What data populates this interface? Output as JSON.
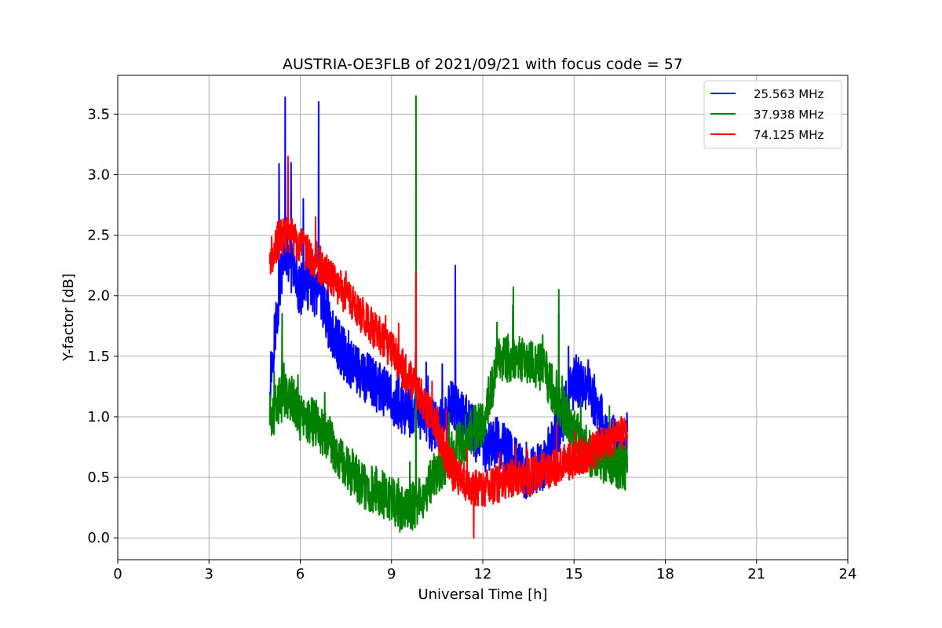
{
  "chart_data": {
    "type": "line",
    "title": "AUSTRIA-OE3FLB of 2021/09/21 with focus code = 57",
    "xlabel": "Universal Time [h]",
    "ylabel": "Y-factor [dB]",
    "xlim": [
      0,
      24
    ],
    "ylim": [
      -0.18,
      3.82
    ],
    "xticks": [
      0,
      3,
      6,
      9,
      12,
      15,
      18,
      21,
      24
    ],
    "xtick_labels": [
      "0",
      "3",
      "6",
      "9",
      "12",
      "15",
      "18",
      "21",
      "24"
    ],
    "yticks": [
      0.0,
      0.5,
      1.0,
      1.5,
      2.0,
      2.5,
      3.0,
      3.5
    ],
    "ytick_labels": [
      "0.0",
      "0.5",
      "1.0",
      "1.5",
      "2.0",
      "2.5",
      "3.0",
      "3.5"
    ],
    "grid": true,
    "legend_position": "top-right",
    "series": [
      {
        "name": "25.563 MHz",
        "color": "#0000ff",
        "x": [
          5.0,
          5.25,
          5.5,
          5.75,
          6.0,
          6.25,
          6.5,
          6.75,
          7.0,
          7.5,
          8.0,
          8.5,
          9.0,
          9.5,
          10.0,
          10.5,
          11.0,
          11.5,
          12.0,
          12.5,
          13.0,
          13.5,
          14.0,
          14.5,
          15.0,
          15.5,
          16.0,
          16.5,
          16.75
        ],
        "y": [
          1.3,
          1.9,
          2.4,
          2.2,
          2.05,
          2.1,
          2.0,
          1.95,
          1.7,
          1.5,
          1.35,
          1.25,
          1.15,
          1.05,
          1.0,
          0.9,
          1.1,
          0.95,
          0.75,
          0.8,
          0.65,
          0.5,
          0.6,
          0.9,
          1.3,
          1.25,
          0.9,
          0.75,
          0.7
        ],
        "noise": 0.22,
        "spikes": [
          {
            "x": 5.3,
            "y": 3.09
          },
          {
            "x": 5.5,
            "y": 3.64
          },
          {
            "x": 5.7,
            "y": 3.1
          },
          {
            "x": 6.1,
            "y": 2.8
          },
          {
            "x": 6.6,
            "y": 3.6
          },
          {
            "x": 11.1,
            "y": 2.25
          },
          {
            "x": 14.5,
            "y": 1.85
          }
        ]
      },
      {
        "name": "37.938 MHz",
        "color": "#008000",
        "x": [
          5.0,
          5.25,
          5.5,
          5.75,
          6.0,
          6.5,
          7.0,
          7.5,
          8.0,
          8.5,
          9.0,
          9.5,
          10.0,
          10.5,
          11.0,
          11.5,
          12.0,
          12.5,
          13.0,
          13.5,
          14.0,
          14.5,
          15.0,
          15.5,
          16.0,
          16.5,
          16.75
        ],
        "y": [
          1.0,
          1.1,
          1.2,
          1.15,
          1.0,
          0.95,
          0.8,
          0.6,
          0.45,
          0.4,
          0.3,
          0.2,
          0.35,
          0.55,
          0.7,
          0.85,
          0.95,
          1.45,
          1.5,
          1.45,
          1.4,
          1.1,
          0.9,
          0.7,
          0.65,
          0.6,
          0.55
        ],
        "noise": 0.2,
        "spikes": [
          {
            "x": 9.8,
            "y": 3.65
          },
          {
            "x": 5.4,
            "y": 1.85
          },
          {
            "x": 13.0,
            "y": 2.07
          },
          {
            "x": 14.5,
            "y": 2.05
          }
        ]
      },
      {
        "name": "74.125 MHz",
        "color": "#ff0000",
        "x": [
          5.0,
          5.25,
          5.5,
          5.75,
          6.0,
          6.5,
          7.0,
          7.5,
          8.0,
          8.5,
          9.0,
          9.5,
          10.0,
          10.5,
          11.0,
          11.5,
          12.0,
          12.5,
          13.0,
          13.5,
          14.0,
          14.5,
          15.0,
          15.5,
          16.0,
          16.5,
          16.75
        ],
        "y": [
          2.3,
          2.45,
          2.5,
          2.5,
          2.4,
          2.3,
          2.15,
          2.0,
          1.85,
          1.7,
          1.55,
          1.35,
          1.15,
          0.9,
          0.55,
          0.45,
          0.4,
          0.45,
          0.5,
          0.5,
          0.55,
          0.6,
          0.65,
          0.7,
          0.8,
          0.85,
          0.9
        ],
        "noise": 0.16,
        "spikes": [
          {
            "x": 5.6,
            "y": 3.15
          },
          {
            "x": 6.5,
            "y": 2.65
          },
          {
            "x": 9.8,
            "y": 2.2
          },
          {
            "x": 11.7,
            "y": 0.0
          }
        ]
      }
    ]
  }
}
